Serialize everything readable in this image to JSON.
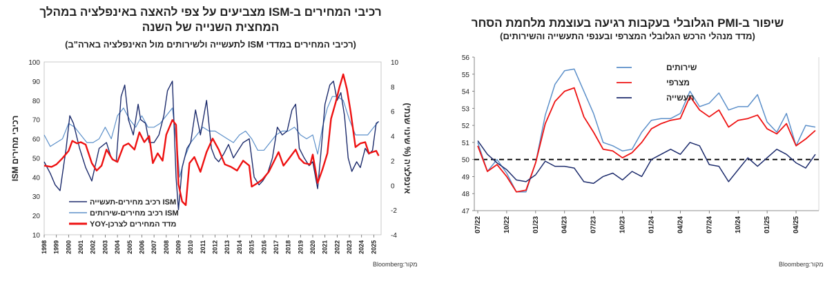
{
  "left_chart": {
    "title_line1": "רכיבי המחירים ב-ISM מצביעים על צפי להאצה באינפלציה במהלך",
    "title_line2": "המחצית השנייה של השנה",
    "subtitle": "(רכיבי המחירים במדדי ISM לתעשייה ולשירותים מול האינפלציה בארה\"ב)",
    "source": "מקור:Bloomberg",
    "colors": {
      "manufacturing": "#1b2a6b",
      "services": "#5b8fc9",
      "cpi": "#ee1111"
    },
    "chart_data": {
      "type": "line",
      "x_ticks": [
        "1998",
        "1999",
        "2000",
        "2001",
        "2002",
        "2003",
        "2004",
        "2005",
        "2006",
        "2007",
        "2008",
        "2009",
        "2010",
        "2011",
        "2012",
        "2013",
        "2014",
        "2015",
        "2016",
        "2017",
        "2018",
        "2019",
        "2020",
        "2021",
        "2022",
        "2023",
        "2024",
        "2025"
      ],
      "xlim": [
        1998,
        2025.6
      ],
      "y_left": {
        "label": "רכיבי מחירים ISM",
        "ylim": [
          10,
          100
        ],
        "ticks": [
          "10",
          "20",
          "30",
          "40",
          "50",
          "60",
          "70",
          "80",
          "90",
          "100"
        ]
      },
      "y_right": {
        "label": "אינפלציה (% שינוי שנתי)",
        "ylim": [
          -4,
          10
        ],
        "ticks": [
          "-4",
          "-2",
          "0",
          "2",
          "4",
          "6",
          "8",
          "10"
        ]
      },
      "legend": [
        "רכיב מחירים-תעשייה ISM",
        "רכיב מחירים-שירותים  ISM",
        "YOY-מדד המחירים לצרכן"
      ],
      "legend_position": "bottom-left",
      "series": [
        {
          "name": "רכיב מחירים-תעשייה ISM",
          "axis": "left",
          "x": [
            1998,
            1998.5,
            1998.9,
            1999.3,
            1999.8,
            2000.1,
            2000.4,
            2000.9,
            2001.4,
            2001.9,
            2002.5,
            2003.1,
            2003.5,
            2003.9,
            2004.3,
            2004.6,
            2004.9,
            2005.3,
            2005.7,
            2005.9,
            2006.3,
            2006.6,
            2007,
            2007.4,
            2007.8,
            2008.1,
            2008.5,
            2008.8,
            2009,
            2009.3,
            2009.7,
            2010,
            2010.4,
            2010.8,
            2011.3,
            2011.7,
            2012,
            2012.3,
            2012.7,
            2013.1,
            2013.5,
            2013.9,
            2014.3,
            2014.8,
            2015.2,
            2015.6,
            2015.9,
            2016.3,
            2016.7,
            2017.1,
            2017.5,
            2017.9,
            2018.3,
            2018.6,
            2018.9,
            2019.3,
            2019.7,
            2020,
            2020.4,
            2020.7,
            2021,
            2021.4,
            2021.7,
            2022,
            2022.3,
            2022.6,
            2022.9,
            2023.2,
            2023.6,
            2023.9,
            2024.3,
            2024.6,
            2024.9,
            2025.2,
            2025.4
          ],
          "values": [
            48,
            42,
            36,
            33,
            55,
            72,
            68,
            55,
            45,
            38,
            55,
            58,
            50,
            48,
            82,
            88,
            70,
            62,
            78,
            70,
            68,
            58,
            58,
            62,
            72,
            85,
            90,
            40,
            23,
            45,
            55,
            58,
            75,
            62,
            80,
            55,
            50,
            48,
            52,
            57,
            50,
            54,
            58,
            60,
            40,
            36,
            38,
            42,
            50,
            66,
            62,
            64,
            75,
            78,
            55,
            50,
            46,
            48,
            34,
            55,
            78,
            88,
            90,
            80,
            84,
            72,
            50,
            43,
            48,
            45,
            55,
            52,
            54,
            68,
            69
          ]
        },
        {
          "name": "רכיב מחירים-שירותים  ISM",
          "axis": "left",
          "x": [
            1998,
            1998.5,
            1999,
            1999.5,
            2000,
            2000.5,
            2001,
            2001.5,
            2002,
            2002.5,
            2003,
            2003.5,
            2004,
            2004.5,
            2005,
            2005.5,
            2006,
            2006.5,
            2007,
            2007.5,
            2008,
            2008.5,
            2008.9,
            2009.1,
            2009.5,
            2010,
            2010.5,
            2011,
            2011.5,
            2012,
            2012.5,
            2013,
            2013.5,
            2014,
            2014.5,
            2015,
            2015.5,
            2016,
            2016.5,
            2017,
            2017.5,
            2018,
            2018.5,
            2019,
            2019.5,
            2020,
            2020.4,
            2020.8,
            2021.2,
            2021.6,
            2022,
            2022.5,
            2023,
            2023.5,
            2024,
            2024.5,
            2025,
            2025.4
          ],
          "values": [
            62,
            56,
            58,
            60,
            68,
            66,
            62,
            58,
            58,
            60,
            66,
            60,
            72,
            76,
            70,
            66,
            72,
            66,
            66,
            68,
            72,
            76,
            55,
            40,
            50,
            58,
            62,
            66,
            64,
            64,
            62,
            60,
            58,
            62,
            64,
            60,
            54,
            54,
            58,
            62,
            64,
            64,
            66,
            62,
            60,
            62,
            52,
            66,
            76,
            82,
            82,
            80,
            70,
            62,
            62,
            62,
            66,
            69
          ]
        },
        {
          "name": "YOY-מדד המחירים לצרכן",
          "axis": "right",
          "x": [
            1998,
            1998.6,
            1999,
            1999.5,
            2000,
            2000.3,
            2000.7,
            2001,
            2001.4,
            2001.9,
            2002.3,
            2002.7,
            2003.1,
            2003.6,
            2004,
            2004.5,
            2004.9,
            2005.4,
            2005.8,
            2006.2,
            2006.6,
            2006.9,
            2007.3,
            2007.7,
            2008,
            2008.5,
            2008.8,
            2009,
            2009.3,
            2009.6,
            2009.9,
            2010.3,
            2010.8,
            2011.3,
            2011.8,
            2012.3,
            2012.8,
            2013.3,
            2013.8,
            2014.3,
            2014.8,
            2015,
            2015.5,
            2015.9,
            2016.4,
            2016.9,
            2017.2,
            2017.6,
            2018,
            2018.6,
            2018.9,
            2019.3,
            2019.8,
            2020,
            2020.4,
            2020.8,
            2021.2,
            2021.5,
            2021.9,
            2022.2,
            2022.5,
            2022.8,
            2023.1,
            2023.5,
            2023.9,
            2024.3,
            2024.6,
            2024.9,
            2025.2,
            2025.4
          ],
          "values": [
            1.6,
            1.5,
            1.7,
            2.2,
            2.8,
            3.6,
            3.4,
            3.5,
            3.3,
            1.8,
            1.2,
            1.6,
            2.9,
            2.1,
            1.9,
            3.2,
            3.4,
            2.9,
            4.3,
            3.5,
            4.0,
            1.8,
            2.6,
            2.0,
            4.1,
            5.3,
            4.9,
            0.1,
            -1.3,
            -1.6,
            1.8,
            2.3,
            1.1,
            2.7,
            3.8,
            2.9,
            1.7,
            1.5,
            1.2,
            2.0,
            1.6,
            -0.1,
            0.2,
            0.5,
            1.1,
            2.1,
            2.7,
            1.6,
            2.1,
            2.9,
            2.2,
            1.8,
            1.7,
            2.5,
            0.2,
            1.3,
            2.6,
            5.4,
            6.8,
            8.0,
            9.0,
            7.8,
            6.0,
            3.1,
            3.4,
            3.5,
            2.6,
            2.7,
            2.8,
            2.4
          ]
        }
      ]
    }
  },
  "right_chart": {
    "title_line1": "שיפור ב-PMI הגלובלי בעקבות רגיעה בעוצמת מלחמת הסחר",
    "subtitle": "(מדד מנהלי הרכש הגלובלי המצרפי ובענפי התעשייה והשירותים)",
    "source": "מקור:Bloomberg",
    "colors": {
      "services": "#5b8fc9",
      "composite": "#ee1111",
      "manufacturing": "#1b2a6b",
      "reference": "#000000"
    },
    "chart_data": {
      "type": "line",
      "x_tick_labels": [
        "07/22",
        "10/22",
        "01/23",
        "04/23",
        "07/23",
        "10/23",
        "01/24",
        "04/24",
        "07/24",
        "10/24",
        "01/25",
        "04/25"
      ],
      "ylim": [
        47,
        56
      ],
      "y_ticks": [
        "47",
        "48",
        "49",
        "50",
        "51",
        "52",
        "53",
        "54",
        "55",
        "56"
      ],
      "reference_line": 50,
      "legend": [
        "שירותים",
        "מצרפי",
        "תעשייה"
      ],
      "legend_position": "top",
      "months": [
        "07/22",
        "08/22",
        "09/22",
        "10/22",
        "11/22",
        "12/22",
        "01/23",
        "02/23",
        "03/23",
        "04/23",
        "05/23",
        "06/23",
        "07/23",
        "08/23",
        "09/23",
        "10/23",
        "11/23",
        "12/23",
        "01/24",
        "02/24",
        "03/24",
        "04/24",
        "05/24",
        "06/24",
        "07/24",
        "08/24",
        "09/24",
        "10/24",
        "11/24",
        "12/24",
        "01/25",
        "02/25",
        "03/25",
        "04/25",
        "05/25",
        "06/25"
      ],
      "series": [
        {
          "name": "שירותים",
          "values": [
            51.0,
            49.3,
            50.0,
            49.2,
            48.1,
            48.1,
            49.8,
            52.6,
            54.4,
            55.2,
            55.3,
            54.0,
            52.7,
            51.0,
            50.8,
            50.5,
            50.6,
            51.6,
            52.3,
            52.4,
            52.4,
            52.7,
            54.0,
            53.1,
            53.3,
            53.9,
            52.9,
            53.1,
            53.1,
            53.8,
            52.2,
            51.6,
            52.7,
            50.8,
            52.0,
            51.9
          ]
        },
        {
          "name": "מצרפי",
          "values": [
            50.8,
            49.3,
            49.7,
            49.0,
            48.1,
            48.2,
            49.8,
            52.1,
            53.4,
            54.0,
            54.2,
            52.5,
            51.6,
            50.6,
            50.5,
            50.1,
            50.4,
            51.0,
            51.8,
            52.1,
            52.3,
            52.4,
            53.7,
            52.9,
            52.5,
            52.9,
            51.9,
            52.3,
            52.4,
            52.6,
            51.8,
            51.5,
            52.1,
            50.8,
            51.2,
            51.7
          ]
        },
        {
          "name": "תעשייה",
          "values": [
            51.1,
            50.3,
            49.8,
            49.4,
            48.8,
            48.7,
            49.1,
            49.9,
            49.6,
            49.6,
            49.5,
            48.7,
            48.6,
            49.0,
            49.2,
            48.8,
            49.3,
            49.0,
            50.0,
            50.3,
            50.6,
            50.3,
            51.0,
            50.8,
            49.7,
            49.6,
            48.7,
            49.4,
            50.1,
            49.6,
            50.1,
            50.6,
            50.3,
            49.8,
            49.5,
            50.3
          ]
        }
      ]
    }
  }
}
